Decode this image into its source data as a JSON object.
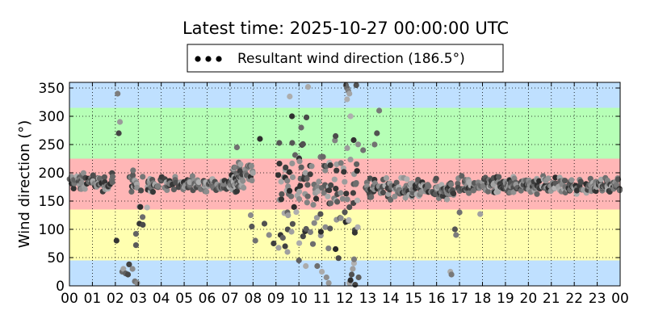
{
  "chart_data": {
    "type": "scatter",
    "title": "Latest time: 2025-10-27 00:00:00 UTC",
    "xlabel": "",
    "ylabel": "Wind direction (°)",
    "xlim": [
      0,
      24
    ],
    "ylim": [
      0,
      360
    ],
    "x_unit": "hour of day (UTC)",
    "x_ticks": [
      "00",
      "01",
      "02",
      "03",
      "04",
      "05",
      "06",
      "07",
      "08",
      "09",
      "10",
      "11",
      "12",
      "13",
      "14",
      "15",
      "16",
      "17",
      "18",
      "19",
      "20",
      "21",
      "22",
      "23",
      "00"
    ],
    "y_ticks": [
      0,
      50,
      100,
      150,
      200,
      250,
      300,
      350
    ],
    "grid": true,
    "legend": {
      "placement": "top-center",
      "entries": [
        "Resultant wind direction (186.5°)"
      ]
    },
    "background_bands": [
      {
        "from": 0,
        "to": 45,
        "color": "#bfe0ff"
      },
      {
        "from": 45,
        "to": 135,
        "color": "#ffffb0"
      },
      {
        "from": 135,
        "to": 225,
        "color": "#ffb6b6"
      },
      {
        "from": 225,
        "to": 315,
        "color": "#b6ffb6"
      },
      {
        "from": 315,
        "to": 360,
        "color": "#bfe0ff"
      }
    ],
    "marker_colors": {
      "recent": "#000000",
      "oldest": "#b4b4b4"
    },
    "series": [
      {
        "name": "Resultant wind direction (186.5°)",
        "segments": [
          {
            "x0": 0.0,
            "x1": 1.9,
            "n": 70,
            "mean": 183,
            "spread": 12
          },
          {
            "x0": 2.6,
            "x1": 3.0,
            "n": 18,
            "mean": 186,
            "spread": 14
          },
          {
            "x0": 3.0,
            "x1": 3.4,
            "n": 6,
            "mean": 150,
            "spread": 40
          },
          {
            "x0": 3.4,
            "x1": 7.6,
            "n": 150,
            "mean": 180,
            "spread": 10
          },
          {
            "x0": 7.0,
            "x1": 8.0,
            "n": 40,
            "mean": 200,
            "spread": 18
          },
          {
            "x0": 9.1,
            "x1": 12.6,
            "n": 140,
            "mean": 170,
            "spread": 80
          },
          {
            "x0": 12.9,
            "x1": 16.8,
            "n": 170,
            "mean": 170,
            "spread": 14
          },
          {
            "x0": 16.9,
            "x1": 24.0,
            "n": 270,
            "mean": 178,
            "spread": 11
          }
        ],
        "points": [
          {
            "x": 2.05,
            "y": 80
          },
          {
            "x": 2.1,
            "y": 340
          },
          {
            "x": 2.15,
            "y": 270
          },
          {
            "x": 2.2,
            "y": 290
          },
          {
            "x": 2.3,
            "y": 25
          },
          {
            "x": 2.35,
            "y": 30
          },
          {
            "x": 2.45,
            "y": 22
          },
          {
            "x": 2.55,
            "y": 20
          },
          {
            "x": 2.6,
            "y": 38
          },
          {
            "x": 2.75,
            "y": 30
          },
          {
            "x": 2.85,
            "y": 8
          },
          {
            "x": 2.95,
            "y": 5
          },
          {
            "x": 2.9,
            "y": 72
          },
          {
            "x": 2.9,
            "y": 92
          },
          {
            "x": 3.05,
            "y": 110
          },
          {
            "x": 3.2,
            "y": 108
          },
          {
            "x": 7.3,
            "y": 245
          },
          {
            "x": 7.9,
            "y": 125
          },
          {
            "x": 7.95,
            "y": 105
          },
          {
            "x": 8.1,
            "y": 80
          },
          {
            "x": 8.3,
            "y": 260
          },
          {
            "x": 8.5,
            "y": 110
          },
          {
            "x": 8.7,
            "y": 90
          },
          {
            "x": 8.9,
            "y": 75
          },
          {
            "x": 9.2,
            "y": 90
          },
          {
            "x": 9.3,
            "y": 85
          },
          {
            "x": 9.4,
            "y": 70
          },
          {
            "x": 9.5,
            "y": 60
          },
          {
            "x": 9.6,
            "y": 335
          },
          {
            "x": 9.7,
            "y": 300
          },
          {
            "x": 10.0,
            "y": 45
          },
          {
            "x": 10.1,
            "y": 280
          },
          {
            "x": 10.3,
            "y": 35
          },
          {
            "x": 10.4,
            "y": 352
          },
          {
            "x": 10.5,
            "y": 95
          },
          {
            "x": 10.8,
            "y": 35
          },
          {
            "x": 11.0,
            "y": 25
          },
          {
            "x": 11.2,
            "y": 15
          },
          {
            "x": 11.3,
            "y": 5
          },
          {
            "x": 11.6,
            "y": 65
          },
          {
            "x": 12.05,
            "y": 355
          },
          {
            "x": 12.1,
            "y": 350
          },
          {
            "x": 12.15,
            "y": 345
          },
          {
            "x": 12.1,
            "y": 330
          },
          {
            "x": 12.2,
            "y": 340
          },
          {
            "x": 12.25,
            "y": 300
          },
          {
            "x": 12.2,
            "y": 5
          },
          {
            "x": 12.25,
            "y": 10
          },
          {
            "x": 12.3,
            "y": 20
          },
          {
            "x": 12.35,
            "y": 30
          },
          {
            "x": 12.4,
            "y": 40
          },
          {
            "x": 12.45,
            "y": 2
          },
          {
            "x": 12.5,
            "y": 355
          },
          {
            "x": 12.6,
            "y": 15
          },
          {
            "x": 12.8,
            "y": 240
          },
          {
            "x": 13.1,
            "y": 190
          },
          {
            "x": 13.3,
            "y": 250
          },
          {
            "x": 13.4,
            "y": 270
          },
          {
            "x": 13.5,
            "y": 310
          },
          {
            "x": 16.6,
            "y": 25
          },
          {
            "x": 16.65,
            "y": 20
          },
          {
            "x": 16.8,
            "y": 100
          },
          {
            "x": 16.85,
            "y": 90
          },
          {
            "x": 17.0,
            "y": 130
          },
          {
            "x": 17.9,
            "y": 127
          }
        ]
      }
    ]
  }
}
